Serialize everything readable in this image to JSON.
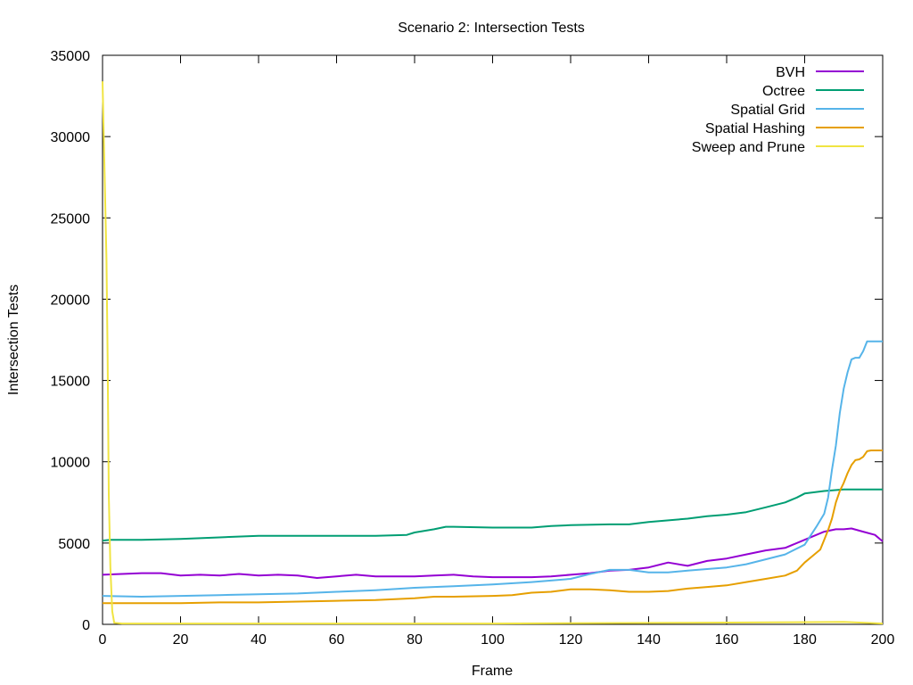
{
  "chart_data": {
    "type": "line",
    "title": "Scenario 2: Intersection Tests",
    "xlabel": "Frame",
    "ylabel": "Intersection Tests",
    "xlim": [
      0,
      200
    ],
    "ylim": [
      0,
      35000
    ],
    "xticks": [
      0,
      20,
      40,
      60,
      80,
      100,
      120,
      140,
      160,
      180,
      200
    ],
    "yticks": [
      0,
      5000,
      10000,
      15000,
      20000,
      25000,
      30000,
      35000
    ],
    "grid": false,
    "legend_position": "top-right",
    "series": [
      {
        "name": "BVH",
        "color": "#9400d3",
        "x": [
          0,
          5,
          10,
          15,
          20,
          25,
          30,
          35,
          40,
          45,
          50,
          55,
          60,
          65,
          70,
          75,
          80,
          85,
          90,
          95,
          100,
          105,
          110,
          115,
          120,
          125,
          130,
          135,
          140,
          145,
          150,
          155,
          160,
          165,
          170,
          175,
          180,
          185,
          188,
          190,
          192,
          195,
          198,
          200
        ],
        "y": [
          3050,
          3100,
          3150,
          3150,
          3000,
          3050,
          3000,
          3100,
          3000,
          3050,
          3000,
          2850,
          2950,
          3050,
          2950,
          2950,
          2950,
          3000,
          3050,
          2950,
          2900,
          2900,
          2900,
          2950,
          3050,
          3150,
          3300,
          3350,
          3500,
          3800,
          3600,
          3900,
          4050,
          4300,
          4550,
          4700,
          5200,
          5700,
          5850,
          5850,
          5900,
          5700,
          5500,
          5100
        ]
      },
      {
        "name": "Octree",
        "color": "#009e73",
        "x": [
          0,
          2,
          10,
          20,
          25,
          30,
          40,
          50,
          60,
          70,
          78,
          80,
          85,
          88,
          90,
          100,
          110,
          115,
          120,
          130,
          135,
          140,
          150,
          155,
          160,
          165,
          170,
          175,
          178,
          180,
          185,
          190,
          200
        ],
        "y": [
          5150,
          5200,
          5200,
          5250,
          5300,
          5350,
          5450,
          5450,
          5450,
          5450,
          5500,
          5650,
          5850,
          6000,
          6000,
          5950,
          5950,
          6050,
          6100,
          6150,
          6150,
          6300,
          6500,
          6650,
          6750,
          6900,
          7200,
          7500,
          7800,
          8050,
          8200,
          8300,
          8300
        ]
      },
      {
        "name": "Spatial Grid",
        "color": "#56b4e9",
        "x": [
          0,
          10,
          20,
          30,
          40,
          50,
          60,
          70,
          80,
          90,
          100,
          110,
          120,
          125,
          130,
          135,
          140,
          145,
          150,
          155,
          160,
          165,
          170,
          175,
          180,
          183,
          185,
          186,
          187,
          188,
          189,
          190,
          191,
          192,
          193,
          194,
          195,
          196,
          197,
          198,
          200
        ],
        "y": [
          1750,
          1700,
          1750,
          1800,
          1850,
          1900,
          2000,
          2100,
          2250,
          2350,
          2450,
          2600,
          2800,
          3100,
          3350,
          3350,
          3200,
          3200,
          3300,
          3400,
          3500,
          3700,
          4000,
          4300,
          4900,
          6000,
          6800,
          7800,
          9500,
          11000,
          13000,
          14500,
          15500,
          16300,
          16400,
          16400,
          16800,
          17400,
          17400,
          17400,
          17400
        ]
      },
      {
        "name": "Spatial Hashing",
        "color": "#e69f00",
        "x": [
          0,
          10,
          20,
          30,
          40,
          50,
          60,
          70,
          80,
          85,
          90,
          100,
          105,
          110,
          115,
          120,
          125,
          130,
          135,
          140,
          145,
          150,
          155,
          160,
          165,
          170,
          175,
          178,
          180,
          182,
          184,
          185,
          186,
          187,
          188,
          189,
          190,
          191,
          192,
          193,
          194,
          195,
          196,
          197,
          198,
          200
        ],
        "y": [
          1300,
          1300,
          1300,
          1350,
          1350,
          1400,
          1450,
          1500,
          1600,
          1700,
          1700,
          1750,
          1800,
          1950,
          2000,
          2150,
          2150,
          2100,
          2000,
          2000,
          2050,
          2200,
          2300,
          2400,
          2600,
          2800,
          3000,
          3300,
          3800,
          4200,
          4600,
          5200,
          5800,
          6500,
          7500,
          8200,
          8700,
          9300,
          9800,
          10100,
          10150,
          10300,
          10650,
          10700,
          10700,
          10700
        ]
      },
      {
        "name": "Sweep and Prune",
        "color": "#f0e442",
        "x": [
          0,
          0.5,
          1,
          1.3,
          1.6,
          2,
          2.5,
          3,
          5,
          20,
          50,
          100,
          150,
          190,
          200
        ],
        "y": [
          33400,
          28000,
          22500,
          16500,
          8000,
          3500,
          800,
          100,
          50,
          50,
          50,
          50,
          100,
          150,
          50
        ]
      }
    ]
  }
}
